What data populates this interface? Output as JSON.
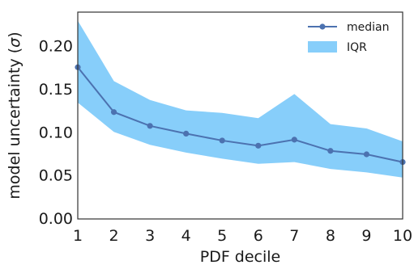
{
  "chart_data": {
    "type": "line",
    "title": "",
    "xlabel": "PDF decile",
    "ylabel": "model uncertainty (σ)",
    "x": [
      1,
      2,
      3,
      4,
      5,
      6,
      7,
      8,
      9,
      10
    ],
    "xlim": [
      1,
      10
    ],
    "ylim": [
      0,
      0.24
    ],
    "xticks": [
      "1",
      "2",
      "3",
      "4",
      "5",
      "6",
      "7",
      "8",
      "9",
      "10"
    ],
    "yticks": [
      "0.00",
      "0.05",
      "0.10",
      "0.15",
      "0.20"
    ],
    "grid": false,
    "legend_position": "top-right",
    "series": [
      {
        "name": "median",
        "kind": "line-with-markers",
        "color": "#4c72b0",
        "values": [
          0.176,
          0.124,
          0.108,
          0.099,
          0.091,
          0.085,
          0.092,
          0.079,
          0.075,
          0.066
        ]
      },
      {
        "name": "IQR",
        "kind": "band",
        "color": "#87cefa",
        "lower": [
          0.135,
          0.101,
          0.086,
          0.077,
          0.07,
          0.064,
          0.066,
          0.058,
          0.054,
          0.048
        ],
        "upper": [
          0.23,
          0.16,
          0.138,
          0.126,
          0.123,
          0.117,
          0.145,
          0.11,
          0.105,
          0.09
        ]
      }
    ]
  }
}
